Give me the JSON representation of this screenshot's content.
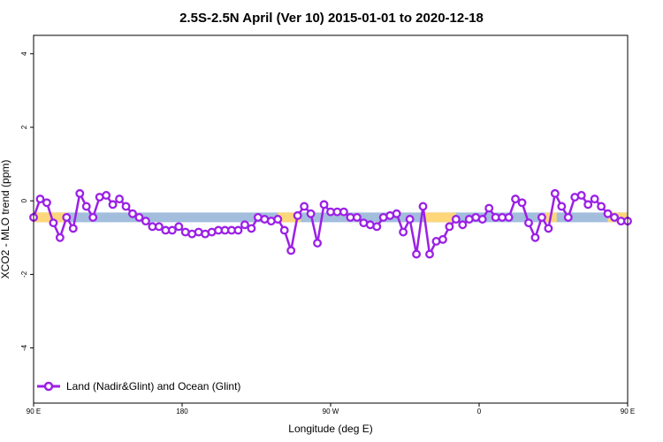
{
  "chart_data": {
    "type": "line",
    "title": "2.5S-2.5N April (Ver 10)   2015-01-01 to 2020-12-18",
    "xlabel": "Longitude (deg E)",
    "ylabel": "XCO2 - MLO trend (ppm)",
    "xlim": [
      90,
      450
    ],
    "ylim": [
      -5.5,
      4.5
    ],
    "x_ticks": [
      {
        "value": 90,
        "label": "90 E"
      },
      {
        "value": 180,
        "label": "180"
      },
      {
        "value": 270,
        "label": "90 W"
      },
      {
        "value": 360,
        "label": "0"
      },
      {
        "value": 450,
        "label": "90 E"
      },
      {
        "value": 540,
        "label": "180"
      }
    ],
    "y_ticks": [
      {
        "value": -4,
        "label": "-4"
      },
      {
        "value": -2,
        "label": "-2"
      },
      {
        "value": 0,
        "label": "0"
      },
      {
        "value": 2,
        "label": "2"
      },
      {
        "value": 4,
        "label": "4"
      }
    ],
    "grid": false,
    "legend_position": "bottom-left",
    "band": {
      "y": -0.45,
      "base_color": "#a3bddd",
      "highlight_color": "#fdd77a",
      "highlight_ranges": [
        [
          90,
          110
        ],
        [
          238,
          252
        ],
        [
          327,
          346
        ],
        [
          400,
          407
        ],
        [
          438,
          450
        ]
      ]
    },
    "series": [
      {
        "name": "Land (Nadir&Glint) and Ocean (Glint)",
        "color": "#9b20e6",
        "x": [
          90,
          94,
          98,
          102,
          106,
          110,
          114,
          118,
          122,
          126,
          130,
          134,
          138,
          142,
          146,
          150,
          154,
          158,
          162,
          166,
          170,
          174,
          178,
          182,
          186,
          190,
          194,
          198,
          202,
          206,
          210,
          214,
          218,
          222,
          226,
          230,
          234,
          238,
          242,
          246,
          250,
          254,
          258,
          262,
          266,
          270,
          274,
          278,
          282,
          286,
          290,
          294,
          298,
          302,
          306,
          310,
          314,
          318,
          322,
          326,
          330,
          334,
          338,
          342,
          346,
          350,
          354,
          358,
          362,
          366,
          370,
          374,
          378,
          382,
          386,
          390,
          394,
          398,
          402,
          406,
          410,
          414,
          418,
          422,
          426,
          430,
          434,
          438,
          442,
          446,
          450
        ],
        "values": [
          -0.45,
          0.05,
          -0.05,
          -0.6,
          -1.0,
          -0.45,
          -0.75,
          0.2,
          -0.15,
          -0.45,
          0.1,
          0.15,
          -0.1,
          0.05,
          -0.15,
          -0.35,
          -0.45,
          -0.55,
          -0.7,
          -0.7,
          -0.8,
          -0.8,
          -0.7,
          -0.85,
          -0.9,
          -0.85,
          -0.9,
          -0.85,
          -0.8,
          -0.8,
          -0.8,
          -0.8,
          -0.65,
          -0.75,
          -0.45,
          -0.5,
          -0.55,
          -0.5,
          -0.8,
          -1.35,
          -0.4,
          -0.15,
          -0.35,
          -1.15,
          -0.1,
          -0.3,
          -0.3,
          -0.3,
          -0.45,
          -0.45,
          -0.6,
          -0.65,
          -0.7,
          -0.45,
          -0.4,
          -0.35,
          -0.85,
          -0.5,
          -1.45,
          -0.15,
          -1.45,
          -1.1,
          -1.05,
          -0.7,
          -0.5,
          -0.65,
          -0.5,
          -0.45,
          -0.5,
          -0.2,
          -0.45,
          -0.45,
          -0.45,
          0.05,
          -0.05,
          -0.6,
          -1.0,
          -0.45,
          -0.75,
          0.2,
          -0.15,
          -0.45,
          0.1,
          0.15,
          -0.1,
          0.05,
          -0.15,
          -0.35,
          -0.45,
          -0.55,
          -0.55
        ]
      }
    ]
  }
}
